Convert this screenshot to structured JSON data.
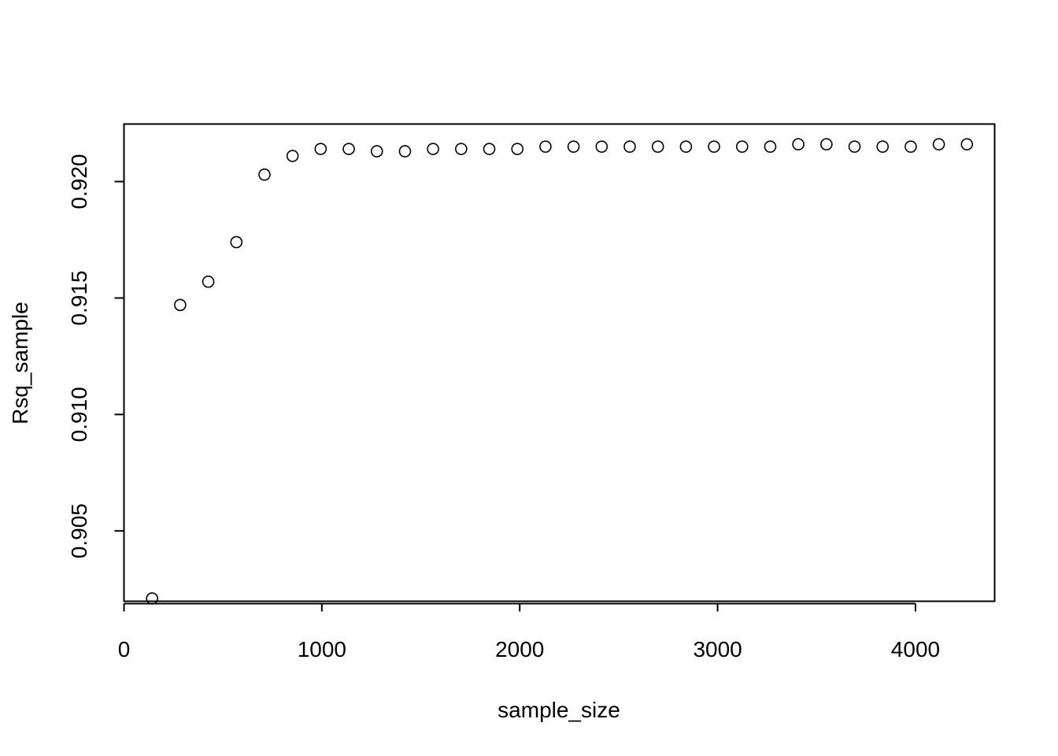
{
  "chart_data": {
    "type": "scatter",
    "title": "",
    "xlabel": "sample_size",
    "ylabel": "Rsq_sample",
    "xlim": [
      0,
      4400
    ],
    "ylim": [
      0.90198,
      0.92247
    ],
    "xticks": [
      0,
      1000,
      2000,
      3000,
      4000
    ],
    "xtick_labels": [
      "0",
      "1000",
      "2000",
      "3000",
      "4000"
    ],
    "yticks": [
      0.905,
      0.91,
      0.915,
      0.92
    ],
    "ytick_labels": [
      "0.905",
      "0.910",
      "0.915",
      "0.920"
    ],
    "grid": false,
    "legend": "none",
    "marker": "open-circle",
    "colors": {
      "points": "#000000",
      "axes": "#000000",
      "background": "#ffffff"
    },
    "x": [
      142,
      284,
      426,
      568,
      710,
      852,
      994,
      1136,
      1278,
      1420,
      1562,
      1704,
      1846,
      1988,
      2130,
      2272,
      2414,
      2556,
      2698,
      2840,
      2982,
      3124,
      3266,
      3408,
      3550,
      3692,
      3834,
      3976,
      4118,
      4260
    ],
    "y": [
      0.9021,
      0.9147,
      0.9157,
      0.9174,
      0.9203,
      0.9211,
      0.9214,
      0.9214,
      0.9213,
      0.9213,
      0.9214,
      0.9214,
      0.9214,
      0.9214,
      0.9215,
      0.9215,
      0.9215,
      0.9215,
      0.9215,
      0.9215,
      0.9215,
      0.9215,
      0.9215,
      0.9216,
      0.9216,
      0.9215,
      0.9215,
      0.9215,
      0.9216,
      0.9216
    ]
  }
}
